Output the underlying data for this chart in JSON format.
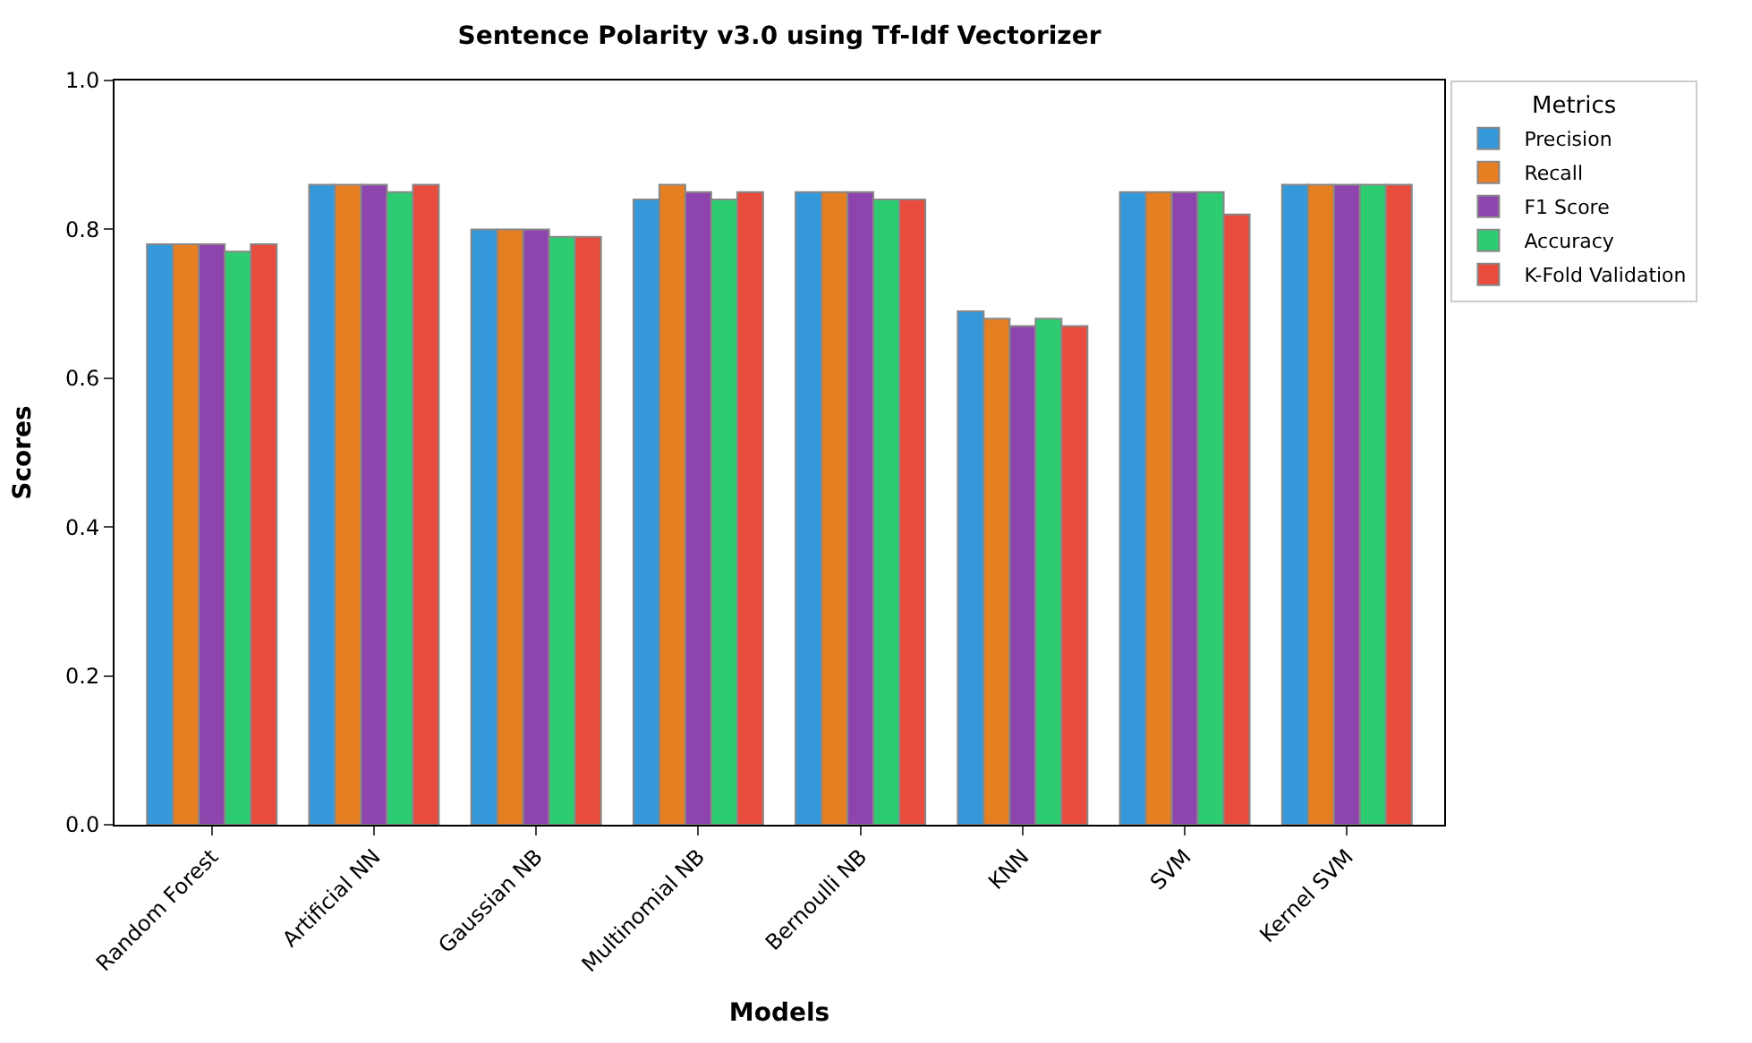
{
  "chart_data": {
    "type": "bar",
    "title": "Sentence Polarity v3.0 using Tf-Idf Vectorizer",
    "xlabel": "Models",
    "ylabel": "Scores",
    "legend_title": "Metrics",
    "legend": "top right",
    "categories": [
      "Random Forest",
      "Artificial NN",
      "Gaussian NB",
      "Multinomial NB",
      "Bernoulli NB",
      "KNN",
      "SVM",
      "Kernel SVM"
    ],
    "series": [
      {
        "name": "Precision",
        "color": "#3498db",
        "values": [
          0.78,
          0.86,
          0.8,
          0.84,
          0.85,
          0.69,
          0.85,
          0.86
        ]
      },
      {
        "name": "Recall",
        "color": "#e67e22",
        "values": [
          0.78,
          0.86,
          0.8,
          0.86,
          0.85,
          0.68,
          0.85,
          0.86
        ]
      },
      {
        "name": "F1 Score",
        "color": "#8e44ad",
        "values": [
          0.78,
          0.86,
          0.8,
          0.85,
          0.85,
          0.67,
          0.85,
          0.86
        ]
      },
      {
        "name": "Accuracy",
        "color": "#2ecc71",
        "values": [
          0.77,
          0.85,
          0.79,
          0.84,
          0.84,
          0.68,
          0.85,
          0.86
        ]
      },
      {
        "name": "K-Fold Validation",
        "color": "#e74c3c",
        "values": [
          0.78,
          0.86,
          0.79,
          0.85,
          0.84,
          0.67,
          0.82,
          0.86
        ]
      }
    ],
    "ylim": [
      0,
      1.0
    ],
    "yticks": [
      {
        "value": 0,
        "label": "0.0"
      },
      {
        "value": 0.2,
        "label": "0.2"
      },
      {
        "value": 0.4,
        "label": "0.4"
      },
      {
        "value": 0.6,
        "label": "0.6"
      },
      {
        "value": 0.8,
        "label": "0.8"
      },
      {
        "value": 1.0,
        "label": "1.0"
      }
    ]
  }
}
